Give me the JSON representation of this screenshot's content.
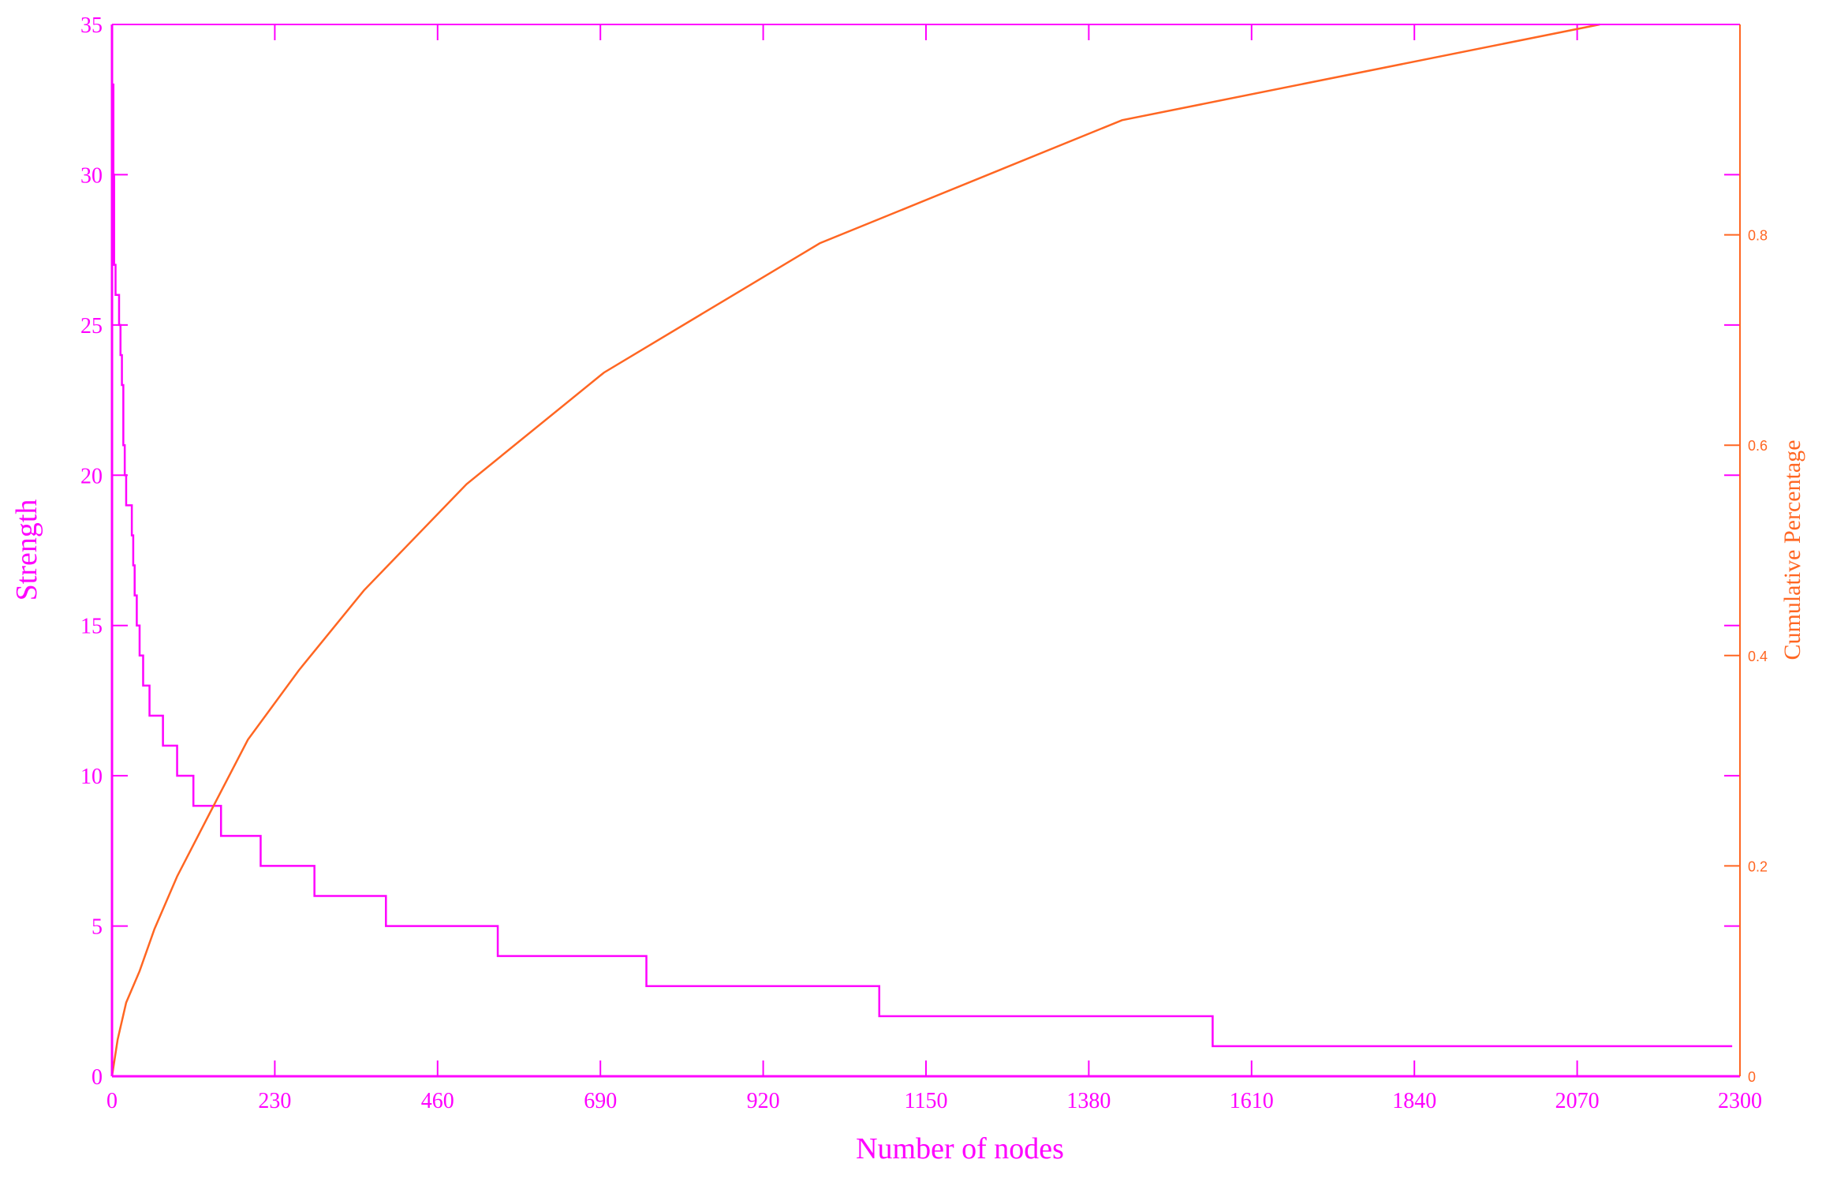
{
  "chart_data": {
    "type": "line",
    "xlabel": "Number of nodes",
    "ylabel": "Strength",
    "y2label": "Cumulative Percentage",
    "xlim": [
      0,
      2300
    ],
    "ylim": [
      0,
      35
    ],
    "y2lim": [
      0,
      1
    ],
    "xticks": [
      "0",
      "230",
      "460",
      "690",
      "920",
      "1150",
      "1380",
      "1610",
      "1840",
      "2070",
      "2300"
    ],
    "yticks": [
      "0",
      "5",
      "10",
      "15",
      "20",
      "25",
      "30",
      "35"
    ],
    "y2ticks": [
      "0",
      "0.2",
      "0.4",
      "0.6",
      "0.8"
    ],
    "grid": false,
    "colors": {
      "strength": "#ff00ff",
      "cumulative": "#ff6622"
    },
    "series": [
      {
        "axis": "left",
        "style": "step",
        "x": [
          0,
          2,
          3,
          5,
          10,
          12,
          14,
          16,
          18,
          20,
          28,
          30,
          32,
          35,
          39,
          44,
          53,
          72,
          92,
          115,
          154,
          210,
          286,
          387,
          545,
          755,
          1084,
          1555
        ],
        "y": [
          33,
          30,
          27,
          26,
          25,
          24,
          23,
          21,
          20,
          19,
          18,
          17,
          16,
          15,
          14,
          13,
          12,
          11,
          10,
          9,
          8,
          7,
          6,
          5,
          4,
          3,
          2,
          1
        ],
        "x_end": 2289
      },
      {
        "axis": "right",
        "style": "line",
        "x": [
          0,
          8,
          20,
          39,
          60,
          92,
          138,
          192,
          264,
          356,
          501,
          695,
          1000,
          1427,
          2102
        ],
        "y": [
          0,
          0.035,
          0.07,
          0.1,
          0.14,
          0.19,
          0.25,
          0.32,
          0.386,
          0.462,
          0.563,
          0.669,
          0.792,
          0.909,
          1.0
        ]
      }
    ]
  }
}
